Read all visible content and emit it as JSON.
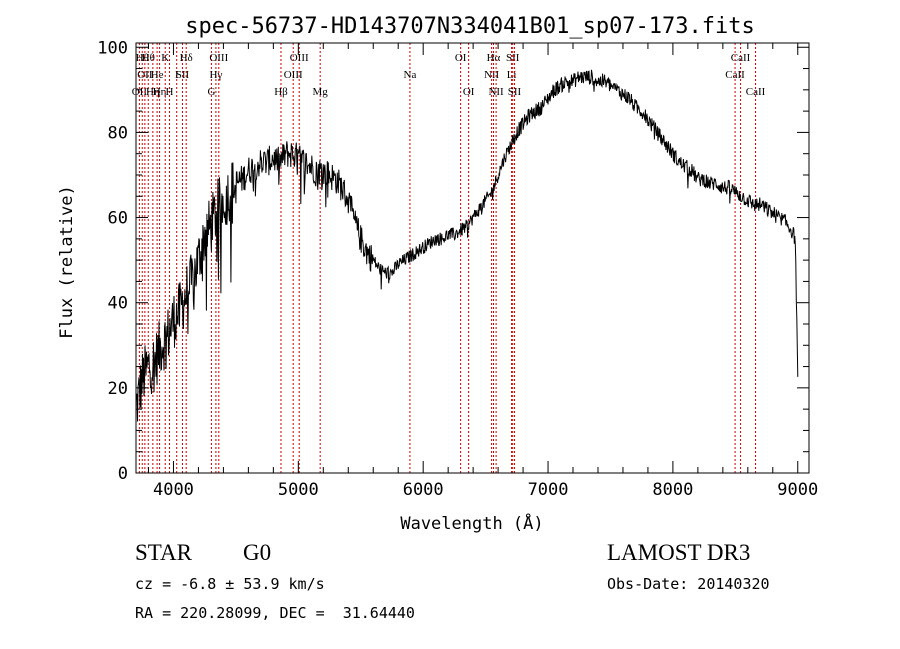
{
  "chart_data": {
    "type": "line",
    "title": "spec-56737-HD143707N334041B01_sp07-173.fits",
    "xlabel": "Wavelength (Å)",
    "ylabel": "Flux (relative)",
    "xlim": [
      3700,
      9090
    ],
    "ylim": [
      0,
      101
    ],
    "x_ticks": [
      4000,
      5000,
      6000,
      7000,
      8000,
      9000
    ],
    "y_ticks": [
      0,
      20,
      40,
      60,
      80,
      100
    ],
    "grid": false,
    "legend": "none",
    "line_color": "#000000",
    "marker_color": "#cc0000",
    "series": [
      {
        "x": [
          3700,
          3750,
          3800,
          3850,
          3900,
          3950,
          4000,
          4050,
          4100,
          4150,
          4200,
          4250,
          4300,
          4350,
          4400,
          4450,
          4500,
          4550,
          4600,
          4650,
          4700,
          4750,
          4800,
          4850,
          4900,
          4950,
          5000,
          5050,
          5100,
          5150,
          5200,
          5250,
          5300,
          5350,
          5400,
          5450,
          5500,
          5550,
          5600,
          5650,
          5700,
          5750,
          5800,
          5850,
          5900,
          5950,
          6000,
          6050,
          6100,
          6150,
          6200,
          6250,
          6300,
          6350,
          6400,
          6450,
          6500,
          6550,
          6600,
          6650,
          6700,
          6750,
          6800,
          6850,
          6900,
          6950,
          7000,
          7050,
          7100,
          7150,
          7200,
          7250,
          7300,
          7350,
          7400,
          7450,
          7500,
          7550,
          7600,
          7650,
          7700,
          7750,
          7800,
          7850,
          7900,
          7950,
          8000,
          8050,
          8100,
          8150,
          8200,
          8250,
          8300,
          8350,
          8400,
          8450,
          8500,
          8550,
          8600,
          8650,
          8700,
          8750,
          8800,
          8850,
          8900,
          8950,
          8980,
          9000
        ],
        "y": [
          15,
          22,
          25,
          26,
          30,
          32,
          36,
          38,
          42,
          45,
          50,
          56,
          58,
          62,
          64,
          66,
          68,
          69,
          71,
          72,
          73,
          73,
          74,
          73,
          75,
          75,
          74,
          73,
          72,
          71,
          71,
          70,
          69,
          67,
          64,
          59,
          55,
          52,
          50,
          48,
          47,
          47,
          49,
          50,
          51,
          52,
          53,
          54,
          55,
          55,
          56,
          56,
          57,
          58,
          60,
          62,
          64,
          66,
          70,
          74,
          77,
          80,
          82,
          84,
          85,
          86,
          88,
          90,
          91,
          92,
          92,
          93,
          93,
          93,
          92,
          92,
          91,
          90,
          89,
          88,
          86,
          85,
          83,
          81,
          79,
          77,
          75,
          73,
          72,
          71,
          69,
          69,
          68,
          68,
          67,
          67,
          66,
          65,
          64,
          63,
          63,
          62,
          61,
          60,
          59,
          57,
          55,
          22
        ]
      }
    ],
    "line_markers": [
      {
        "x": 3727,
        "row": 2,
        "label": "OII"
      },
      {
        "x": 3750,
        "row": 0,
        "label": "Hθ"
      },
      {
        "x": 3771,
        "row": 1,
        "label": "OII"
      },
      {
        "x": 3798,
        "row": 0,
        "label": "Hθ"
      },
      {
        "x": 3835,
        "row": 2,
        "label": "Hη"
      },
      {
        "x": 3869,
        "row": 1,
        "label": "He"
      },
      {
        "x": 3889,
        "row": 2,
        "label": "Hη"
      },
      {
        "x": 3934,
        "row": 0,
        "label": "K"
      },
      {
        "x": 3968,
        "row": 2,
        "label": "H"
      },
      {
        "x": 4026,
        "row": 1,
        "label": "I"
      },
      {
        "x": 4072,
        "row": 1,
        "label": "SII"
      },
      {
        "x": 4102,
        "row": 0,
        "label": "Hδ"
      },
      {
        "x": 4304,
        "row": 2,
        "label": "G"
      },
      {
        "x": 4340,
        "row": 1,
        "label": "Hγ"
      },
      {
        "x": 4363,
        "row": 0,
        "label": "OIII"
      },
      {
        "x": 4861,
        "row": 2,
        "label": "Hβ"
      },
      {
        "x": 4959,
        "row": 1,
        "label": "OIII"
      },
      {
        "x": 5007,
        "row": 0,
        "label": "OIII"
      },
      {
        "x": 5175,
        "row": 2,
        "label": "Mg"
      },
      {
        "x": 5894,
        "row": 1,
        "label": "Na"
      },
      {
        "x": 6300,
        "row": 0,
        "label": "OI"
      },
      {
        "x": 6364,
        "row": 2,
        "label": "OI"
      },
      {
        "x": 6548,
        "row": 1,
        "label": "NII"
      },
      {
        "x": 6563,
        "row": 0,
        "label": "Hα"
      },
      {
        "x": 6584,
        "row": 2,
        "label": "NII"
      },
      {
        "x": 6708,
        "row": 1,
        "label": "Li"
      },
      {
        "x": 6717,
        "row": 0,
        "label": "SII"
      },
      {
        "x": 6731,
        "row": 2,
        "label": "SII"
      },
      {
        "x": 8498,
        "row": 1,
        "label": "CaII"
      },
      {
        "x": 8542,
        "row": 0,
        "label": "CaII"
      },
      {
        "x": 8662,
        "row": 2,
        "label": "CaII"
      }
    ]
  },
  "info": {
    "object_class": "STAR",
    "subclass": "G0",
    "survey": "LAMOST DR3",
    "redshift": "cz = -6.8 ± 53.9 km/s",
    "obs_date": "Obs-Date: 20140320",
    "coords": "RA = 220.28099, DEC =  31.64440"
  }
}
